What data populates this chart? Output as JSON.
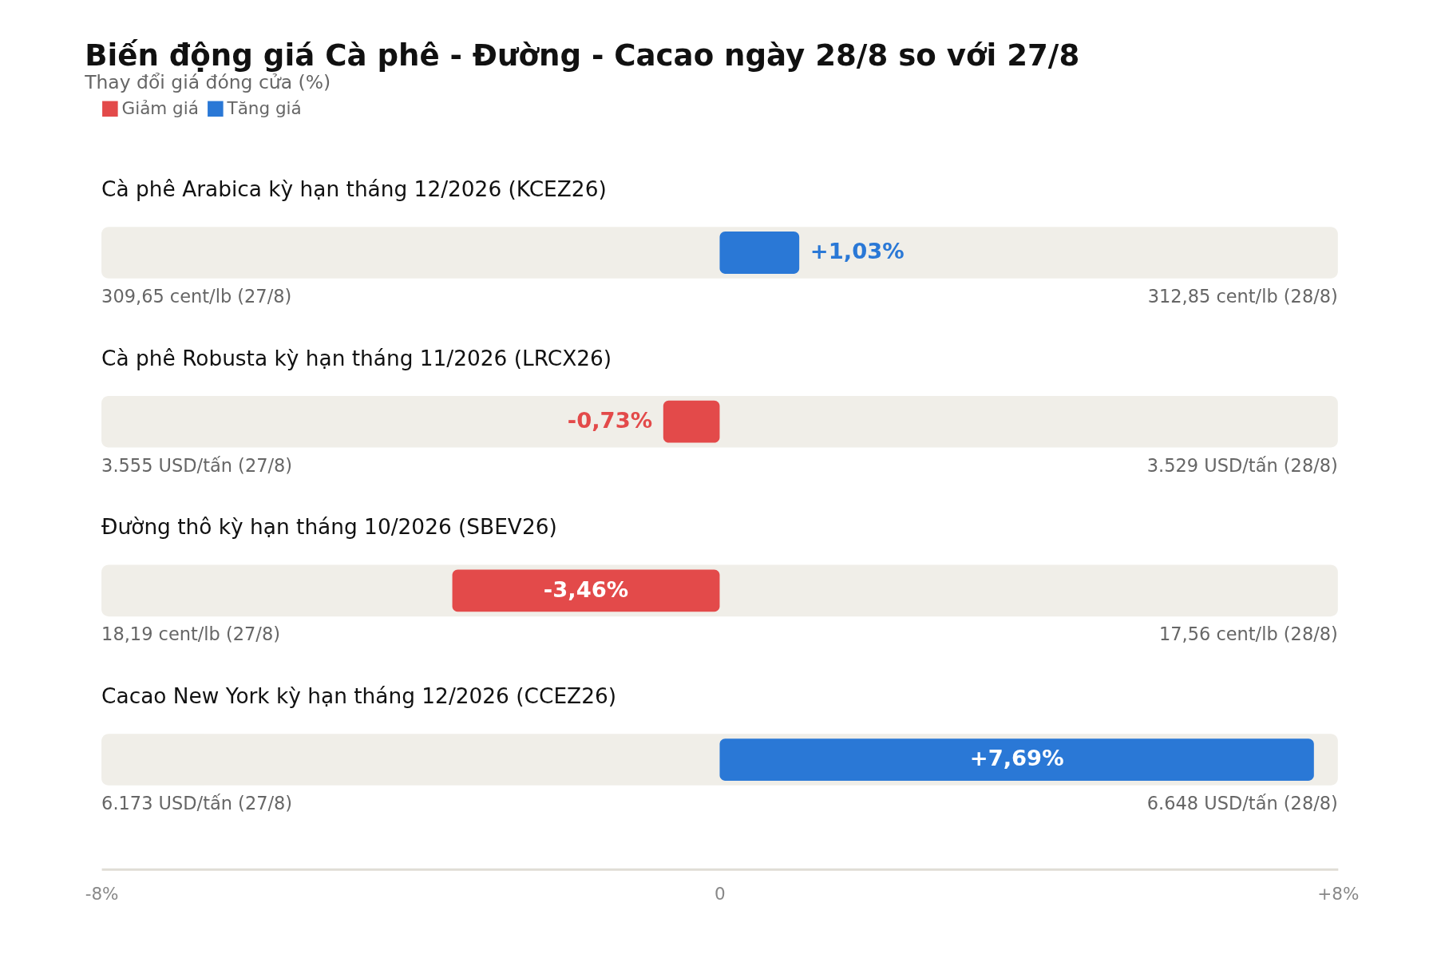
{
  "chart_data": {
    "type": "bar",
    "orientation": "horizontal",
    "title": "Biến động giá Cà phê - Đường - Cacao ngày 28/8 so với 27/8",
    "subtitle": "Thay đổi giá đóng cửa (%)",
    "categories": [
      "Cà phê Arabica kỳ hạn tháng 12/2026 (KCEZ26)",
      "Cà phê Robusta kỳ hạn tháng 11/2026 (LRCX26)",
      "Đường thô kỳ hạn tháng 10/2026 (SBEV26)",
      "Cacao New York kỳ hạn tháng 12/2026 (CCEZ26)"
    ],
    "series": [
      {
        "name": "Giảm giá",
        "color": "#e34a4a",
        "values": [
          null,
          -0.73,
          -3.46,
          null
        ],
        "value_labels": [
          null,
          "-0,73%",
          "-3,46%",
          null
        ]
      },
      {
        "name": "Tăng giá",
        "color": "#2a78d6",
        "values": [
          1.03,
          null,
          null,
          7.69
        ],
        "value_labels": [
          "+1,03%",
          null,
          null,
          "+7,69%"
        ]
      }
    ],
    "xlim": [
      -8,
      8
    ],
    "xticks": [
      {
        "value": -8,
        "label": "-8%"
      },
      0,
      {
        "value": 8,
        "label": "+8%"
      }
    ],
    "bands": [
      {
        "axis": "x",
        "from": -8,
        "to": 8,
        "color": "#f0eee8"
      },
      {
        "axis": "x",
        "from": -8,
        "to": 8,
        "color": "#f0eee8"
      },
      {
        "axis": "x",
        "from": -8,
        "to": 8,
        "color": "#f0eee8"
      },
      {
        "axis": "x",
        "from": -8,
        "to": 8,
        "color": "#f0eee8"
      }
    ],
    "annotations": [
      "309,65 cent/lb (27/8)",
      "312,85 cent/lb (28/8)",
      "3.555 USD/tấn (27/8)",
      "3.529 USD/tấn (28/8)",
      "18,19 cent/lb (27/8)",
      "17,56 cent/lb (28/8)",
      "6.173 USD/tấn (27/8)",
      "6.648 USD/tấn (28/8)"
    ],
    "legend": "top left",
    "grid": false
  }
}
